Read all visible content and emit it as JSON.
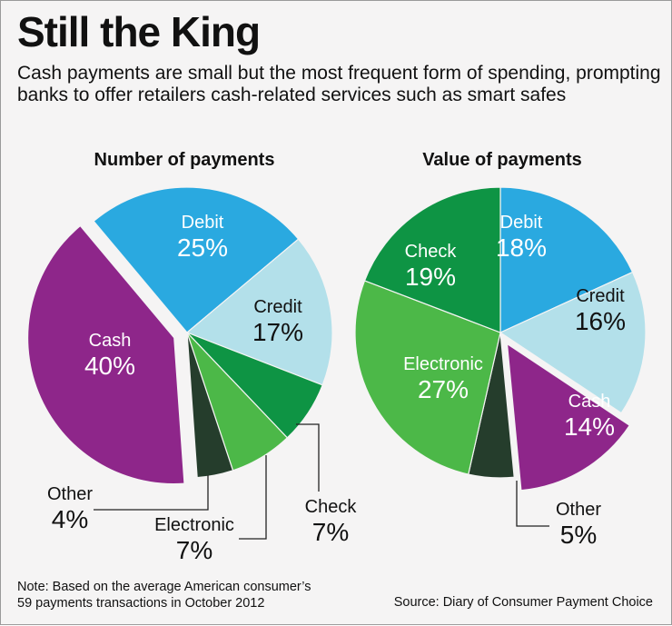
{
  "title": "Still the King",
  "subtitle": "Cash payments are small but the most frequent form of spending, prompting banks to offer retailers cash-related services such as smart safes",
  "note_line1": "Note: Based on the average American consumer’s",
  "note_line2": "59 payments transactions in October 2012",
  "source": "Source: Diary of Consumer Payment Choice",
  "chart_data": [
    {
      "type": "pie",
      "title": "Number of payments",
      "slices": [
        {
          "label": "Debit",
          "value": 25,
          "display": "25%",
          "color": "#2aa9e0"
        },
        {
          "label": "Credit",
          "value": 17,
          "display": "17%",
          "color": "#b3e0ea"
        },
        {
          "label": "Check",
          "value": 7,
          "display": "7%",
          "color": "#0e9444"
        },
        {
          "label": "Electronic",
          "value": 7,
          "display": "7%",
          "color": "#4cb848"
        },
        {
          "label": "Other",
          "value": 4,
          "display": "4%",
          "color": "#253d2c"
        },
        {
          "label": "Cash",
          "value": 40,
          "display": "40%",
          "color": "#8e268a",
          "exploded": true
        }
      ]
    },
    {
      "type": "pie",
      "title": "Value of payments",
      "slices": [
        {
          "label": "Debit",
          "value": 18,
          "display": "18%",
          "color": "#2aa9e0"
        },
        {
          "label": "Credit",
          "value": 16,
          "display": "16%",
          "color": "#b3e0ea"
        },
        {
          "label": "Cash",
          "value": 14,
          "display": "14%",
          "color": "#8e268a",
          "exploded": true
        },
        {
          "label": "Other",
          "value": 5,
          "display": "5%",
          "color": "#253d2c"
        },
        {
          "label": "Electronic",
          "value": 27,
          "display": "27%",
          "color": "#4cb848"
        },
        {
          "label": "Check",
          "value": 19,
          "display": "19%",
          "color": "#0e9444"
        }
      ]
    }
  ]
}
